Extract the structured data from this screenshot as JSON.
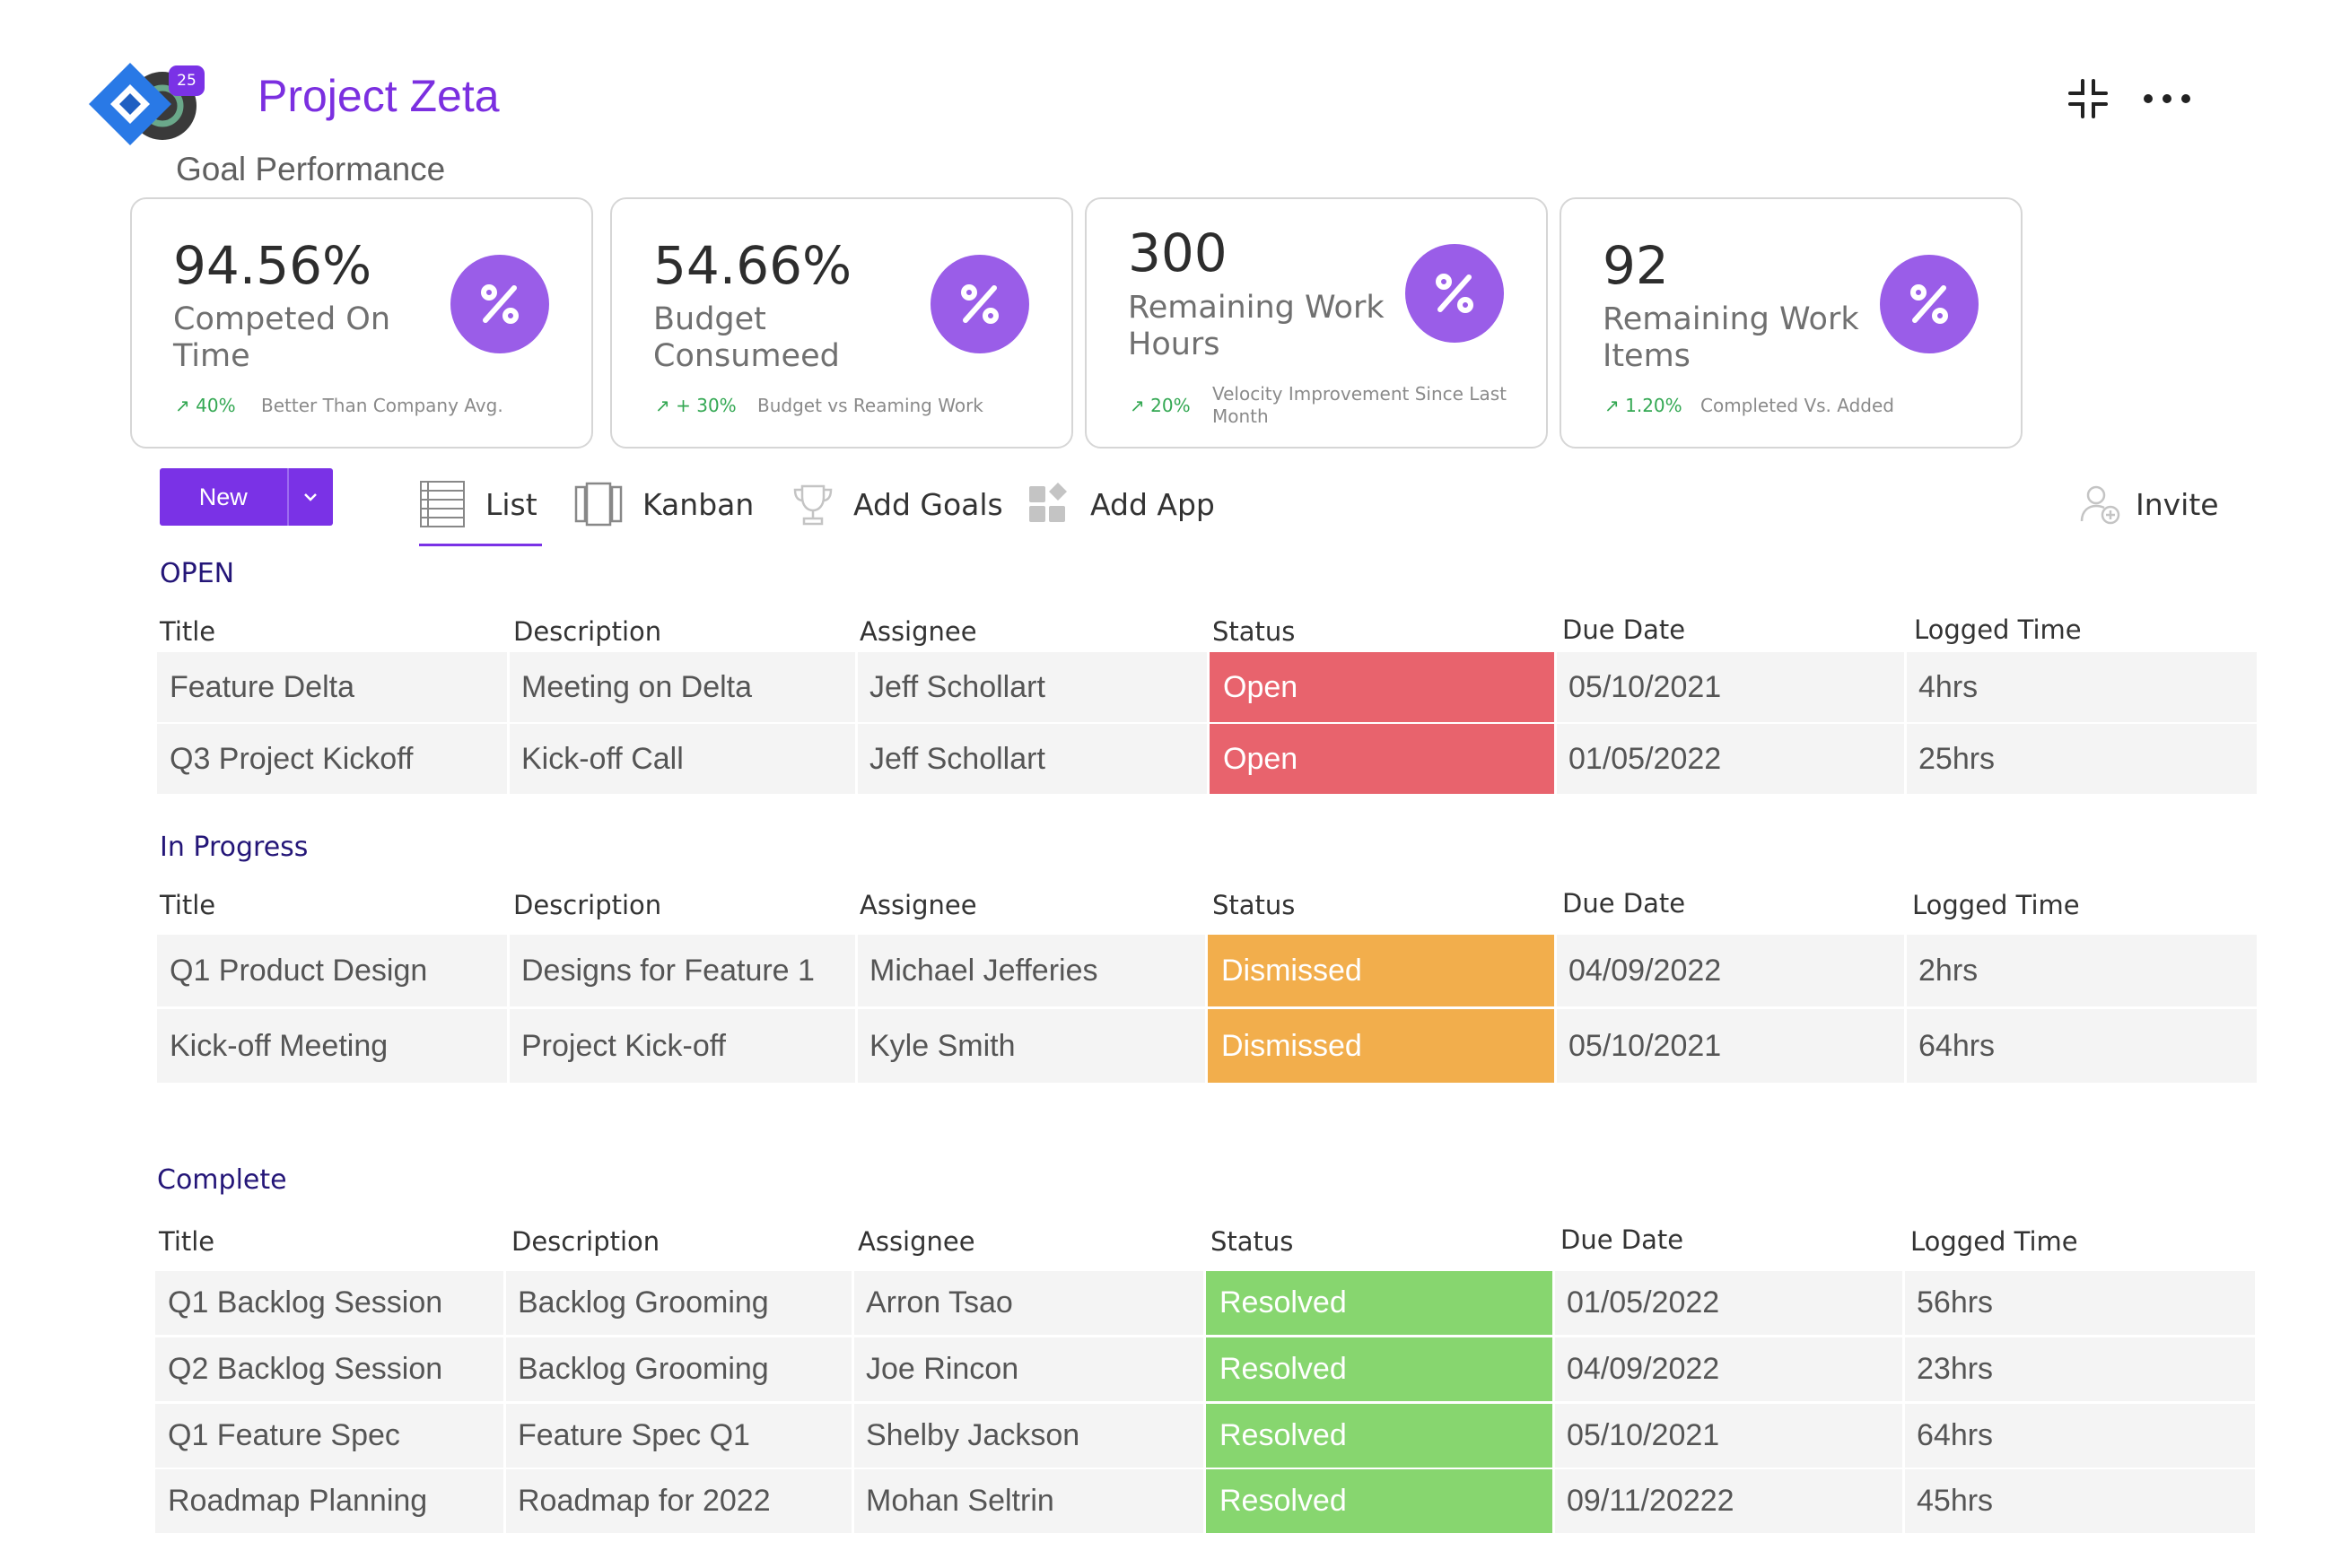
{
  "header": {
    "app_badge": "25",
    "project_title": "Project Zeta",
    "section_title": "Goal Performance"
  },
  "kpis": [
    {
      "value": "94.56%",
      "label": "Competed On Time",
      "trend": "↗ 40%",
      "trend_desc": "Better Than Company Avg."
    },
    {
      "value": "54.66%",
      "label": "Budget Consumeed",
      "trend": "↗ + 30%",
      "trend_desc": "Budget vs Reaming Work"
    },
    {
      "value": "300",
      "label": "Remaining Work Hours",
      "trend": "↗ 20%",
      "trend_desc": "Velocity Improvement Since Last Month"
    },
    {
      "value": "92",
      "label": "Remaining Work Items",
      "trend": "↗ 1.20%",
      "trend_desc": "Completed Vs. Added"
    }
  ],
  "toolbar": {
    "new_label": "New",
    "list": "List",
    "kanban": "Kanban",
    "add_goals": "Add Goals",
    "add_app": "Add App",
    "invite": "Invite"
  },
  "columns": [
    "Title",
    "Description",
    "Assignee",
    "Status",
    "Due Date",
    "Logged Time"
  ],
  "colors": {
    "accent": "#7a32e6",
    "open": "#e8636d",
    "dismissed": "#f2ae4c",
    "resolved": "#87d66f"
  },
  "groups": [
    {
      "label": "OPEN",
      "rows": [
        {
          "title": "Feature Delta",
          "description": "Meeting on Delta",
          "assignee": "Jeff Schollart",
          "status": "Open",
          "due": "05/10/2021",
          "logged": "4hrs"
        },
        {
          "title": "Q3 Project Kickoff",
          "description": "Kick-off Call",
          "assignee": "Jeff Schollart",
          "status": "Open",
          "due": "01/05/2022",
          "logged": "25hrs"
        }
      ]
    },
    {
      "label": "In Progress",
      "rows": [
        {
          "title": "Q1 Product Design",
          "description": "Designs for Feature 1",
          "assignee": "Michael Jefferies",
          "status": "Dismissed",
          "due": "04/09/2022",
          "logged": "2hrs"
        },
        {
          "title": "Kick-off Meeting",
          "description": "Project Kick-off",
          "assignee": "Kyle Smith",
          "status": "Dismissed",
          "due": "05/10/2021",
          "logged": "64hrs"
        }
      ]
    },
    {
      "label": "Complete",
      "rows": [
        {
          "title": "Q1 Backlog Session",
          "description": "Backlog Grooming",
          "assignee": "Arron Tsao",
          "status": "Resolved",
          "due": "01/05/2022",
          "logged": "56hrs"
        },
        {
          "title": "Q2 Backlog Session",
          "description": "Backlog Grooming",
          "assignee": "Joe Rincon",
          "status": "Resolved",
          "due": "04/09/2022",
          "logged": "23hrs"
        },
        {
          "title": "Q1 Feature Spec",
          "description": "Feature Spec Q1",
          "assignee": "Shelby Jackson",
          "status": "Resolved",
          "due": "05/10/2021",
          "logged": "64hrs"
        },
        {
          "title": "Roadmap Planning",
          "description": "Roadmap for 2022",
          "assignee": "Mohan Seltrin",
          "status": "Resolved",
          "due": "09/11/20222",
          "logged": "45hrs"
        }
      ]
    }
  ]
}
